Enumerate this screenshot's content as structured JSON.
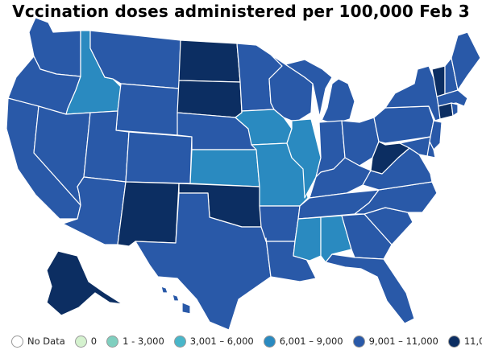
{
  "title": "Vccination doses administered per 100,000 Feb 3",
  "colors": {
    "c9000": "#2959a8",
    "c11001": "#0c2e62",
    "c6000": "#2a8ac0",
    "c3000": "#49b6c9",
    "c1": "#7fcfbf",
    "c0": "#d5f2cf",
    "nodata": "#ffffff"
  },
  "legend": [
    {
      "label": "No Data",
      "color": "#ffffff"
    },
    {
      "label": "0",
      "color": "#d5f2cf"
    },
    {
      "label": "1 - 3,000",
      "color": "#7fcfbf"
    },
    {
      "label": "3,001 – 6,000",
      "color": "#49b6c9"
    },
    {
      "label": "6,001 – 9,000",
      "color": "#2a8ac0"
    },
    {
      "label": "9,001 – 11,000",
      "color": "#2959a8"
    },
    {
      "label": "11,001+",
      "color": "#0c2e62"
    }
  ],
  "state_bins": {
    "WA": "9,001 – 11,000",
    "OR": "9,001 – 11,000",
    "CA": "9,001 – 11,000",
    "ID": "6,001 – 9,000",
    "NV": "9,001 – 11,000",
    "MT": "9,001 – 11,000",
    "WY": "9,001 – 11,000",
    "UT": "9,001 – 11,000",
    "AZ": "9,001 – 11,000",
    "CO": "9,001 – 11,000",
    "NM": "11,001+",
    "ND": "11,001+",
    "SD": "11,001+",
    "NE": "9,001 – 11,000",
    "KS": "6,001 – 9,000",
    "OK": "11,001+",
    "TX": "9,001 – 11,000",
    "MN": "9,001 – 11,000",
    "IA": "6,001 – 9,000",
    "MO": "6,001 – 9,000",
    "AR": "9,001 – 11,000",
    "LA": "9,001 – 11,000",
    "WI": "9,001 – 11,000",
    "IL": "6,001 – 9,000",
    "MI": "9,001 – 11,000",
    "IN": "9,001 – 11,000",
    "OH": "9,001 – 11,000",
    "KY": "9,001 – 11,000",
    "TN": "9,001 – 11,000",
    "MS": "6,001 – 9,000",
    "AL": "6,001 – 9,000",
    "GA": "9,001 – 11,000",
    "FL": "9,001 – 11,000",
    "SC": "9,001 – 11,000",
    "NC": "9,001 – 11,000",
    "VA": "9,001 – 11,000",
    "WV": "11,001+",
    "PA": "9,001 – 11,000",
    "NY": "9,001 – 11,000",
    "VT": "11,001+",
    "NH": "9,001 – 11,000",
    "ME": "9,001 – 11,000",
    "MA": "9,001 – 11,000",
    "CT": "11,001+",
    "RI": "9,001 – 11,000",
    "NJ": "9,001 – 11,000",
    "DE": "9,001 – 11,000",
    "MD": "9,001 – 11,000",
    "AK": "11,001+",
    "HI": "9,001 – 11,000"
  }
}
